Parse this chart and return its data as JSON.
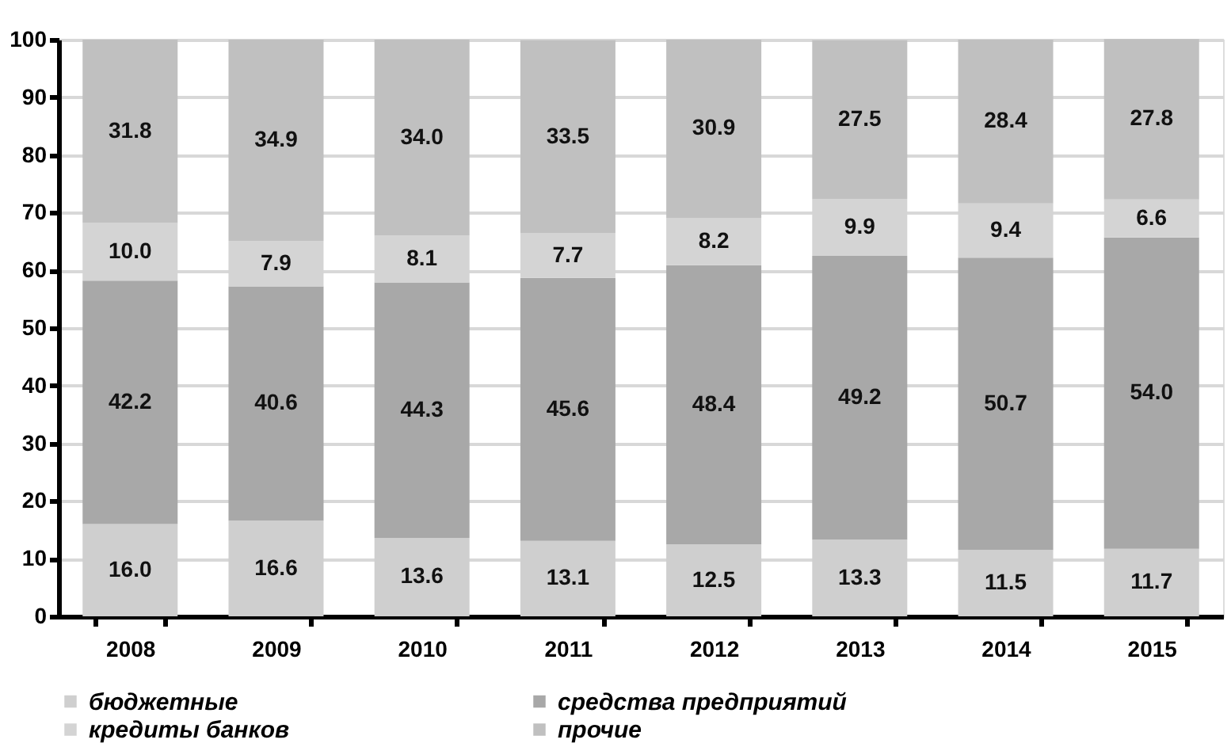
{
  "chart_data": {
    "type": "bar",
    "stacked": true,
    "grid": "y",
    "legend": "bottom",
    "categories": [
      "2008",
      "2009",
      "2010",
      "2011",
      "2012",
      "2013",
      "2014",
      "2015"
    ],
    "series": [
      {
        "name": "бюджетные",
        "color": "#cfcfcf",
        "values": [
          16.0,
          16.6,
          13.6,
          13.1,
          12.5,
          13.3,
          11.5,
          11.7
        ],
        "value_labels": [
          "16.0",
          "16.6",
          "13.6",
          "13.1",
          "12.5",
          "13.3",
          "11.5",
          "11.7"
        ]
      },
      {
        "name": "средства предприятий",
        "color": "#a8a8a8",
        "values": [
          42.2,
          40.6,
          44.3,
          45.6,
          48.4,
          49.2,
          50.7,
          54.0
        ],
        "value_labels": [
          "42.2",
          "40.6",
          "44.3",
          "45.6",
          "48.4",
          "49.2",
          "50.7",
          "54.0"
        ]
      },
      {
        "name": "кредиты банков",
        "color": "#d4d4d4",
        "values": [
          10.0,
          7.9,
          8.1,
          7.7,
          8.2,
          9.9,
          9.4,
          6.6
        ],
        "value_labels": [
          "10.0",
          "7.9",
          "8.1",
          "7.7",
          "8.2",
          "9.9",
          "9.4",
          "6.6"
        ]
      },
      {
        "name": "прочие",
        "color": "#c0c0c0",
        "values": [
          31.8,
          34.9,
          34.0,
          33.5,
          30.9,
          27.5,
          28.4,
          27.8
        ],
        "value_labels": [
          "31.8",
          "34.9",
          "34.0",
          "33.5",
          "30.9",
          "27.5",
          "28.4",
          "27.8"
        ]
      }
    ],
    "ylim": [
      0,
      100
    ],
    "yticks": [
      0,
      10,
      20,
      30,
      40,
      50,
      60,
      70,
      80,
      90,
      100
    ]
  }
}
